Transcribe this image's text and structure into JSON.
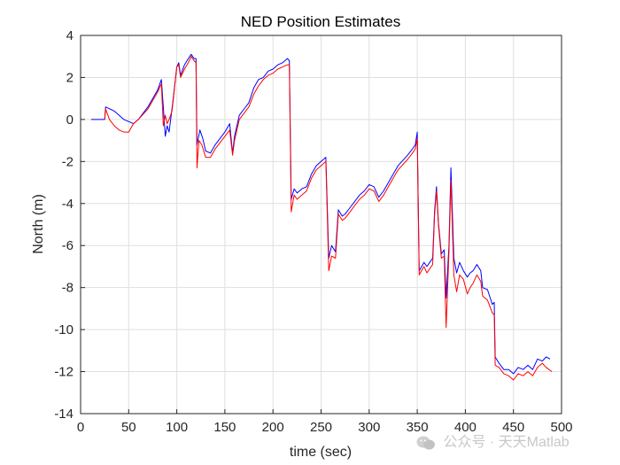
{
  "chart_data": {
    "type": "line",
    "title": "NED Position Estimates",
    "xlabel": "time (sec)",
    "ylabel": "North (m)",
    "xlim": [
      0,
      500
    ],
    "ylim": [
      -14,
      4
    ],
    "xticks": [
      0,
      50,
      100,
      150,
      200,
      250,
      300,
      350,
      400,
      450,
      500
    ],
    "yticks": [
      4,
      2,
      0,
      -2,
      -4,
      -6,
      -8,
      -10,
      -12,
      -14
    ],
    "grid": true,
    "legend": "none",
    "series": [
      {
        "color": "#0000ff",
        "points": [
          [
            11,
            0
          ],
          [
            25,
            0
          ],
          [
            26,
            0.6
          ],
          [
            35,
            0.4
          ],
          [
            45,
            0
          ],
          [
            55,
            -0.2
          ],
          [
            60,
            0
          ],
          [
            70,
            0.6
          ],
          [
            80,
            1.4
          ],
          [
            84,
            1.9
          ],
          [
            86,
            0.6
          ],
          [
            88,
            -0.8
          ],
          [
            90,
            -0.3
          ],
          [
            92,
            -0.6
          ],
          [
            95,
            0.5
          ],
          [
            100,
            2.5
          ],
          [
            102,
            2.7
          ],
          [
            104,
            2.1
          ],
          [
            108,
            2.6
          ],
          [
            112,
            2.9
          ],
          [
            115,
            3.1
          ],
          [
            118,
            2.9
          ],
          [
            120,
            2.9
          ],
          [
            121,
            -1.2
          ],
          [
            124,
            -0.5
          ],
          [
            127,
            -0.9
          ],
          [
            130,
            -1.5
          ],
          [
            135,
            -1.6
          ],
          [
            140,
            -1.2
          ],
          [
            150,
            -0.6
          ],
          [
            155,
            -0.2
          ],
          [
            158,
            -1.6
          ],
          [
            160,
            -0.8
          ],
          [
            165,
            0.2
          ],
          [
            170,
            0.5
          ],
          [
            175,
            0.8
          ],
          [
            180,
            1.5
          ],
          [
            185,
            1.9
          ],
          [
            190,
            2
          ],
          [
            195,
            2.3
          ],
          [
            200,
            2.4
          ],
          [
            205,
            2.6
          ],
          [
            210,
            2.7
          ],
          [
            215,
            2.9
          ],
          [
            217,
            2.8
          ],
          [
            219,
            -3.8
          ],
          [
            222,
            -3.3
          ],
          [
            225,
            -3.5
          ],
          [
            230,
            -3.3
          ],
          [
            235,
            -3.2
          ],
          [
            240,
            -2.6
          ],
          [
            245,
            -2.2
          ],
          [
            250,
            -2
          ],
          [
            255,
            -1.8
          ],
          [
            258,
            -6.6
          ],
          [
            261,
            -6
          ],
          [
            265,
            -6.3
          ],
          [
            268,
            -4.3
          ],
          [
            272,
            -4.6
          ],
          [
            275,
            -4.5
          ],
          [
            280,
            -4.2
          ],
          [
            285,
            -3.9
          ],
          [
            290,
            -3.6
          ],
          [
            295,
            -3.4
          ],
          [
            300,
            -3.1
          ],
          [
            305,
            -3.2
          ],
          [
            310,
            -3.7
          ],
          [
            315,
            -3.4
          ],
          [
            320,
            -3
          ],
          [
            325,
            -2.6
          ],
          [
            330,
            -2.2
          ],
          [
            340,
            -1.7
          ],
          [
            345,
            -1.4
          ],
          [
            348,
            -1.2
          ],
          [
            350,
            -0.6
          ],
          [
            352,
            -7.2
          ],
          [
            357,
            -6.8
          ],
          [
            360,
            -7
          ],
          [
            363,
            -6.8
          ],
          [
            366,
            -6.6
          ],
          [
            368,
            -4.4
          ],
          [
            370,
            -3.2
          ],
          [
            372,
            -4.9
          ],
          [
            375,
            -6.4
          ],
          [
            378,
            -6.2
          ],
          [
            380,
            -8.5
          ],
          [
            383,
            -6
          ],
          [
            385,
            -2.3
          ],
          [
            388,
            -6.6
          ],
          [
            391,
            -7.3
          ],
          [
            394,
            -6.8
          ],
          [
            398,
            -7.2
          ],
          [
            402,
            -7.5
          ],
          [
            405,
            -7.3
          ],
          [
            408,
            -7.2
          ],
          [
            412,
            -6.9
          ],
          [
            416,
            -7.2
          ],
          [
            418,
            -8
          ],
          [
            423,
            -8.1
          ],
          [
            428,
            -8.8
          ],
          [
            430,
            -8.7
          ],
          [
            431,
            -11.3
          ],
          [
            435,
            -11.6
          ],
          [
            440,
            -11.9
          ],
          [
            445,
            -11.9
          ],
          [
            450,
            -12.1
          ],
          [
            455,
            -11.8
          ],
          [
            460,
            -11.9
          ],
          [
            465,
            -11.7
          ],
          [
            470,
            -11.9
          ],
          [
            475,
            -11.4
          ],
          [
            480,
            -11.5
          ],
          [
            484,
            -11.3
          ],
          [
            488,
            -11.4
          ]
        ]
      },
      {
        "color": "#ff0000",
        "points": [
          [
            25,
            0
          ],
          [
            26,
            0.5
          ],
          [
            30,
            0
          ],
          [
            35,
            -0.3
          ],
          [
            40,
            -0.5
          ],
          [
            45,
            -0.6
          ],
          [
            50,
            -0.6
          ],
          [
            55,
            -0.2
          ],
          [
            60,
            0
          ],
          [
            70,
            0.5
          ],
          [
            80,
            1.3
          ],
          [
            84,
            1.7
          ],
          [
            86,
            -0.3
          ],
          [
            88,
            0.2
          ],
          [
            90,
            -0.2
          ],
          [
            92,
            0
          ],
          [
            95,
            0.4
          ],
          [
            100,
            2.5
          ],
          [
            102,
            2.6
          ],
          [
            104,
            2
          ],
          [
            108,
            2.4
          ],
          [
            112,
            2.7
          ],
          [
            115,
            3.0
          ],
          [
            118,
            2.8
          ],
          [
            120,
            2.7
          ],
          [
            121,
            -2.3
          ],
          [
            123,
            -1
          ],
          [
            126,
            -1.2
          ],
          [
            130,
            -1.8
          ],
          [
            135,
            -1.8
          ],
          [
            140,
            -1.4
          ],
          [
            150,
            -0.8
          ],
          [
            155,
            -0.5
          ],
          [
            158,
            -1.7
          ],
          [
            160,
            -1
          ],
          [
            165,
            0
          ],
          [
            170,
            0.3
          ],
          [
            175,
            0.6
          ],
          [
            180,
            1.2
          ],
          [
            185,
            1.6
          ],
          [
            190,
            1.9
          ],
          [
            195,
            2.1
          ],
          [
            200,
            2.2
          ],
          [
            205,
            2.4
          ],
          [
            210,
            2.5
          ],
          [
            215,
            2.6
          ],
          [
            217,
            2.6
          ],
          [
            219,
            -4.4
          ],
          [
            222,
            -3.6
          ],
          [
            225,
            -3.8
          ],
          [
            230,
            -3.6
          ],
          [
            235,
            -3.4
          ],
          [
            240,
            -2.8
          ],
          [
            245,
            -2.4
          ],
          [
            250,
            -2.2
          ],
          [
            255,
            -2
          ],
          [
            258,
            -7.2
          ],
          [
            261,
            -6.5
          ],
          [
            265,
            -6.6
          ],
          [
            268,
            -4.5
          ],
          [
            272,
            -4.8
          ],
          [
            275,
            -4.7
          ],
          [
            280,
            -4.4
          ],
          [
            285,
            -4.1
          ],
          [
            290,
            -3.8
          ],
          [
            295,
            -3.6
          ],
          [
            300,
            -3.3
          ],
          [
            305,
            -3.4
          ],
          [
            310,
            -3.9
          ],
          [
            315,
            -3.6
          ],
          [
            320,
            -3.2
          ],
          [
            325,
            -2.8
          ],
          [
            330,
            -2.4
          ],
          [
            340,
            -1.9
          ],
          [
            345,
            -1.6
          ],
          [
            348,
            -1.4
          ],
          [
            350,
            -0.9
          ],
          [
            352,
            -7.4
          ],
          [
            357,
            -7
          ],
          [
            360,
            -7.3
          ],
          [
            363,
            -7.1
          ],
          [
            366,
            -6.9
          ],
          [
            368,
            -4.6
          ],
          [
            370,
            -3.4
          ],
          [
            372,
            -5
          ],
          [
            375,
            -6.6
          ],
          [
            378,
            -6.5
          ],
          [
            380,
            -9.9
          ],
          [
            383,
            -6.3
          ],
          [
            385,
            -2.9
          ],
          [
            388,
            -7.4
          ],
          [
            391,
            -8.2
          ],
          [
            394,
            -7.4
          ],
          [
            398,
            -7.6
          ],
          [
            402,
            -8.3
          ],
          [
            405,
            -8
          ],
          [
            408,
            -7.8
          ],
          [
            412,
            -7.4
          ],
          [
            416,
            -7.7
          ],
          [
            418,
            -8.4
          ],
          [
            423,
            -8.6
          ],
          [
            428,
            -9.2
          ],
          [
            430,
            -9.3
          ],
          [
            431,
            -11.7
          ],
          [
            435,
            -11.8
          ],
          [
            440,
            -12.1
          ],
          [
            445,
            -12.2
          ],
          [
            450,
            -12.4
          ],
          [
            455,
            -12.1
          ],
          [
            460,
            -12.2
          ],
          [
            465,
            -12
          ],
          [
            470,
            -12.2
          ],
          [
            475,
            -11.8
          ],
          [
            480,
            -11.6
          ],
          [
            484,
            -11.8
          ],
          [
            490,
            -12
          ]
        ]
      }
    ]
  },
  "watermark": {
    "text": "公众号 · 天天Matlab",
    "icon": "wechat-icon"
  }
}
